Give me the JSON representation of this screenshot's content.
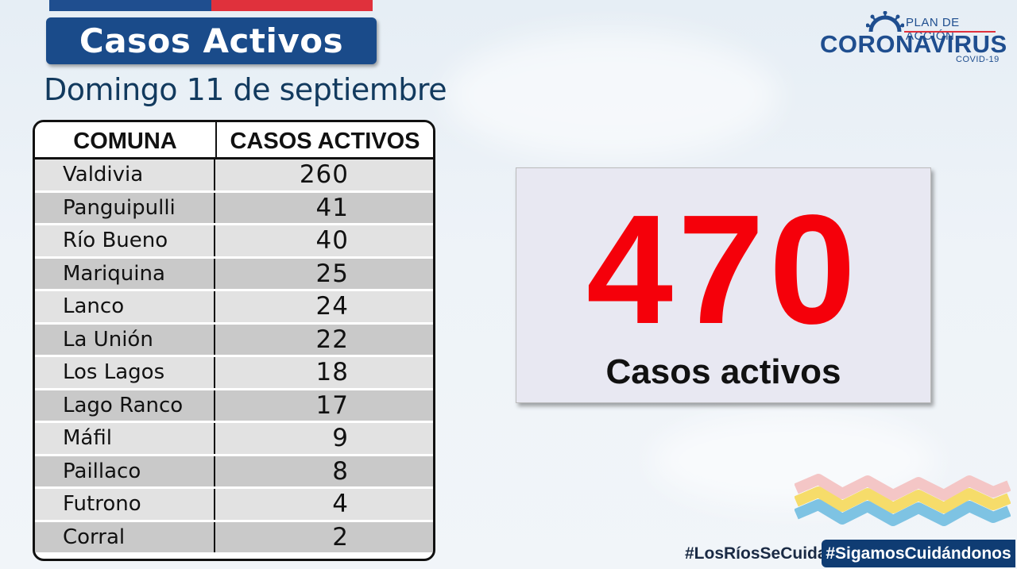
{
  "header": {
    "title": "Casos Activos",
    "subtitle": "Domingo 11 de septiembre"
  },
  "logo": {
    "plan": "PLAN DE ACCIÓN",
    "name": "CORONAVIRUS",
    "covid": "COVID-19"
  },
  "table": {
    "columns": [
      "COMUNA",
      "CASOS ACTIVOS"
    ],
    "rows": [
      {
        "comuna": "Valdivia",
        "casos": "260"
      },
      {
        "comuna": "Panguipulli",
        "casos": "41"
      },
      {
        "comuna": "Río Bueno",
        "casos": "40"
      },
      {
        "comuna": "Mariquina",
        "casos": "25"
      },
      {
        "comuna": "Lanco",
        "casos": "24"
      },
      {
        "comuna": "La Unión",
        "casos": "22"
      },
      {
        "comuna": "Los Lagos",
        "casos": "18"
      },
      {
        "comuna": "Lago Ranco",
        "casos": "17"
      },
      {
        "comuna": "Máfil",
        "casos": "9"
      },
      {
        "comuna": "Paillaco",
        "casos": "8"
      },
      {
        "comuna": "Futrono",
        "casos": "4"
      },
      {
        "comuna": "Corral",
        "casos": "2"
      }
    ]
  },
  "total": {
    "value": "470",
    "label": "Casos activos"
  },
  "hashtags": {
    "primary": "#LosRíosSeCuida",
    "secondary": "#SigamosCuidándonos"
  },
  "colors": {
    "brand_blue": "#1a4b8a",
    "brand_red": "#e0313c",
    "total_red": "#f5000a"
  }
}
